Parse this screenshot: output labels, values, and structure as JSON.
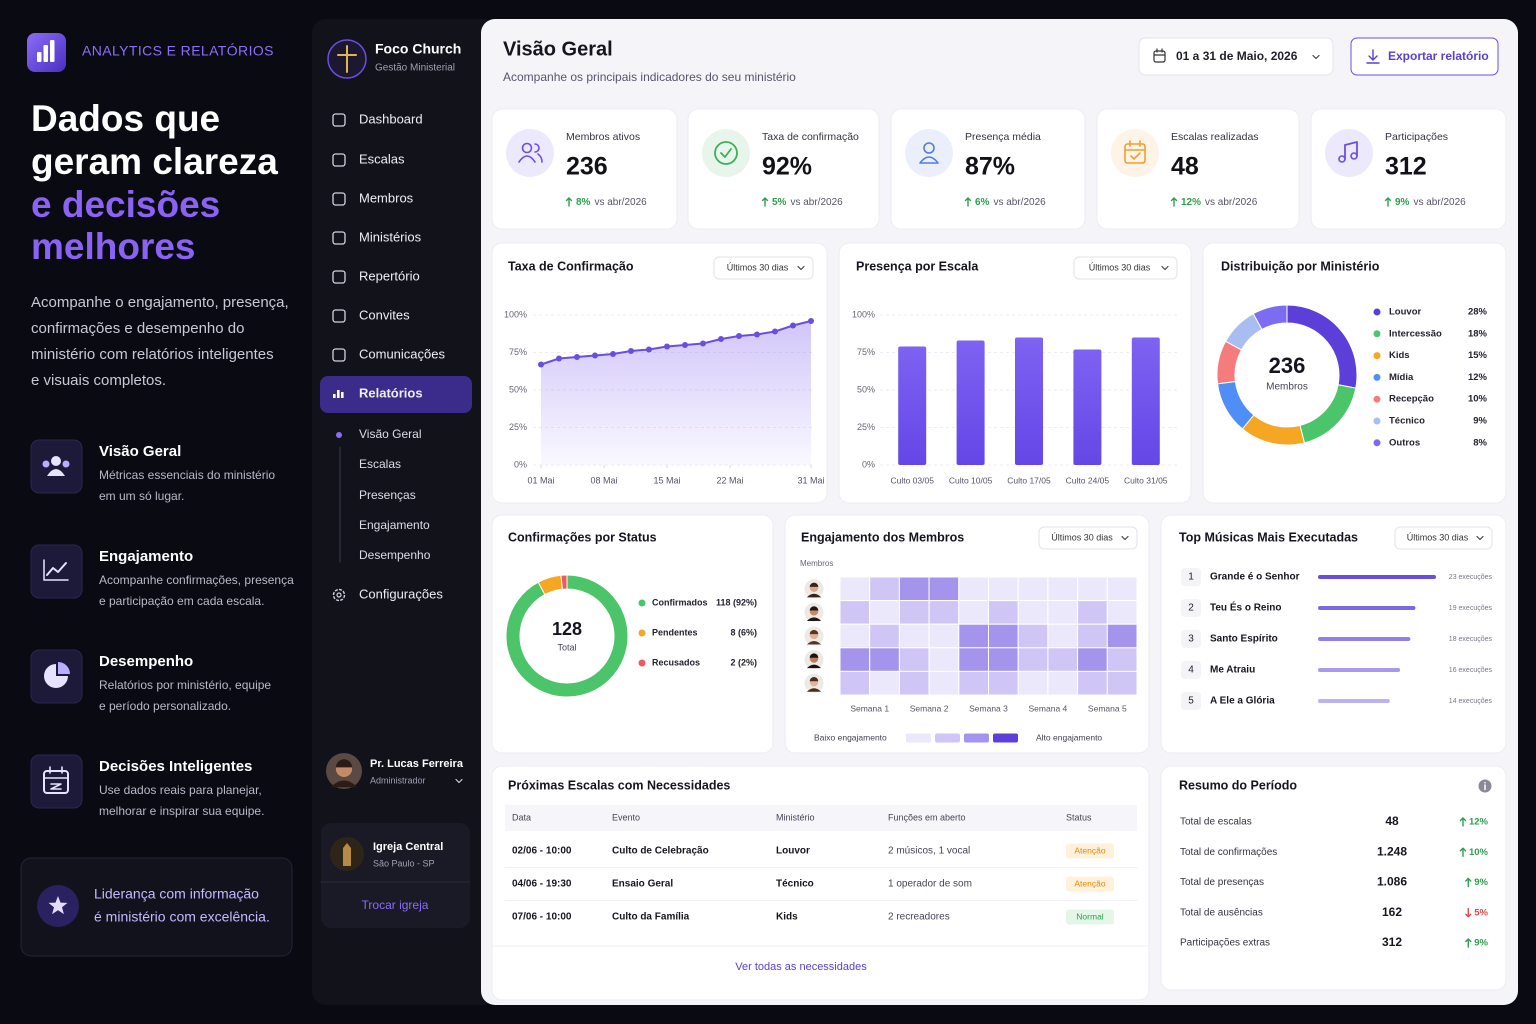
{
  "promo": {
    "eyebrow": "ANALYTICS E RELATÓRIOS",
    "headline": {
      "lines": [
        "Dados que",
        "geram clareza"
      ],
      "accent_lines": [
        "e decisões",
        "melhores"
      ]
    },
    "description_lines": [
      "Acompanhe o engajamento, presença,",
      "confirmações e desempenho do",
      "ministério com relatórios inteligentes",
      "e visuais completos."
    ],
    "features": [
      {
        "title": "Visão Geral",
        "description_lines": [
          "Métricas essenciais do ministério",
          "em um só lugar."
        ]
      },
      {
        "title": "Engajamento",
        "description_lines": [
          "Acompanhe confirmações, presença",
          "e participação em cada escala."
        ]
      },
      {
        "title": "Desempenho",
        "description_lines": [
          "Relatórios por ministério, equipe",
          "e período personalizado."
        ]
      },
      {
        "title": "Decisões Inteligentes",
        "description_lines": [
          "Use dados reais para planejar,",
          "melhorar e inspirar sua equipe."
        ]
      }
    ],
    "quote_lines": [
      "Liderança com informação",
      "é ministério com excelência."
    ]
  },
  "sidebar": {
    "brand": "Foco Church",
    "tagline": "Gestão Ministerial",
    "nav": [
      "Dashboard",
      "Escalas",
      "Membros",
      "Ministérios",
      "Repertório",
      "Convites",
      "Comunicações",
      "Relatórios"
    ],
    "active_nav": 7,
    "subnav": [
      "Visão Geral",
      "Escalas",
      "Presenças",
      "Engajamento",
      "Desempenho"
    ],
    "active_subnav": 0,
    "settings": "Configurações",
    "user": {
      "name": "Pr. Lucas Ferreira",
      "role": "Administrador"
    },
    "church": {
      "name": "Igreja Central",
      "location": "São Paulo - SP",
      "switch": "Trocar igreja"
    }
  },
  "header": {
    "title": "Visão Geral",
    "subtitle": "Acompanhe os principais indicadores do seu ministério",
    "date_range": "01 a 31 de Maio, 2026",
    "export": "Exportar relatório"
  },
  "kpis": [
    {
      "label": "Membros ativos",
      "value": "236",
      "change": "8%",
      "comparison": "vs abr/2026",
      "color": "#6b4ee6"
    },
    {
      "label": "Taxa de confirmação",
      "value": "92%",
      "change": "5%",
      "comparison": "vs abr/2026",
      "color": "#3fae5a"
    },
    {
      "label": "Presença média",
      "value": "87%",
      "change": "6%",
      "comparison": "vs abr/2026",
      "color": "#4f7fe0"
    },
    {
      "label": "Escalas realizadas",
      "value": "48",
      "change": "12%",
      "comparison": "vs abr/2026",
      "color": "#f0a030"
    },
    {
      "label": "Participações",
      "value": "312",
      "change": "9%",
      "comparison": "vs abr/2026",
      "color": "#6b4ee6"
    }
  ],
  "confirmation_chart": {
    "type": "line",
    "title": "Taxa de Confirmação",
    "filter": "Últimos 30 dias",
    "x": [
      1,
      3,
      5,
      7,
      9,
      11,
      13,
      15,
      17,
      19,
      21,
      23,
      25,
      27,
      29,
      31
    ],
    "values": [
      67,
      71,
      72,
      73,
      74,
      76,
      77,
      79,
      80,
      81,
      84,
      86,
      87,
      89,
      93,
      96
    ],
    "xlim": [
      1,
      31
    ],
    "xticks": [
      {
        "value": 1,
        "label": "01 Mai"
      },
      {
        "value": 8,
        "label": "08 Mai"
      },
      {
        "value": 15,
        "label": "15 Mai"
      },
      {
        "value": 22,
        "label": "22 Mai"
      },
      {
        "value": 31,
        "label": "31 Mai"
      }
    ],
    "ylim": [
      0,
      100
    ],
    "yticks": [
      {
        "value": 0,
        "label": "0%"
      },
      {
        "value": 25,
        "label": "25%"
      },
      {
        "value": 50,
        "label": "50%"
      },
      {
        "value": 75,
        "label": "75%"
      },
      {
        "value": 100,
        "label": "100%"
      }
    ],
    "color": "#6a4ee0",
    "grid": true
  },
  "attendance_chart": {
    "type": "bar",
    "title": "Presença por Escala",
    "filter": "Últimos 30 dias",
    "categories": [
      "Culto 03/05",
      "Culto 10/05",
      "Culto 17/05",
      "Culto 24/05",
      "Culto 31/05"
    ],
    "values": [
      79,
      83,
      85,
      77,
      85
    ],
    "ylim": [
      0,
      100
    ],
    "yticks": [
      {
        "value": 0,
        "label": "0%"
      },
      {
        "value": 25,
        "label": "25%"
      },
      {
        "value": 50,
        "label": "50%"
      },
      {
        "value": 75,
        "label": "75%"
      },
      {
        "value": 100,
        "label": "100%"
      }
    ],
    "color": "#7458ee",
    "grid": true
  },
  "ministry_chart": {
    "type": "donut",
    "title": "Distribuição por Ministério",
    "center_value": "236",
    "center_label": "Membros",
    "categories": [
      "Louvor",
      "Intercessão",
      "Kids",
      "Mídia",
      "Recepção",
      "Técnico",
      "Outros"
    ],
    "values": [
      28,
      18,
      15,
      12,
      10,
      9,
      8
    ],
    "value_labels": [
      "28%",
      "18%",
      "15%",
      "12%",
      "10%",
      "9%",
      "8%"
    ],
    "colors": [
      "#5b3fd8",
      "#4cc46a",
      "#f5a623",
      "#4f8ef7",
      "#f47c7c",
      "#a8bdf2",
      "#7c6cf2"
    ]
  },
  "status_chart": {
    "type": "donut",
    "title": "Confirmações por Status",
    "center_value": "128",
    "center_label": "Total",
    "categories": [
      "Confirmados",
      "Pendentes",
      "Recusados"
    ],
    "values": [
      118,
      8,
      2
    ],
    "value_labels": [
      "118 (92%)",
      "8 (6%)",
      "2 (2%)"
    ],
    "colors": [
      "#4cc46a",
      "#f5a623",
      "#ef5a5a"
    ]
  },
  "engagement_chart": {
    "type": "heatmap",
    "title": "Engajamento dos Membros",
    "filter": "Últimos 30 dias",
    "y_label": "Membros",
    "columns": [
      "Semana 1",
      "Semana 2",
      "Semana 3",
      "Semana 4",
      "Semana 5"
    ],
    "values": [
      [
        1,
        2,
        3,
        3,
        1,
        1,
        1,
        1,
        1,
        1
      ],
      [
        2,
        1,
        2,
        2,
        1,
        2,
        1,
        1,
        2,
        1
      ],
      [
        1,
        2,
        1,
        1,
        3,
        3,
        2,
        1,
        2,
        3
      ],
      [
        3,
        3,
        2,
        1,
        3,
        3,
        2,
        2,
        3,
        2
      ],
      [
        2,
        1,
        2,
        1,
        2,
        2,
        1,
        1,
        2,
        2
      ]
    ],
    "colors": [
      "#ebe8fb",
      "#cfc6f6",
      "#a494ec",
      "#5b3fd8"
    ],
    "legend_low": "Baixo engajamento",
    "legend_high": "Alto engajamento"
  },
  "top_songs": {
    "type": "hbar",
    "title": "Top Músicas Mais Executadas",
    "filter": "Últimos 30 dias",
    "ranks": [
      1,
      2,
      3,
      4,
      5
    ],
    "categories": [
      "Grande é o Senhor",
      "Teu És o Reino",
      "Santo Espírito",
      "Me Atraiu",
      "A Ele a Glória"
    ],
    "values": [
      23,
      19,
      18,
      16,
      14
    ],
    "value_labels": [
      "23 execuções",
      "19 execuções",
      "18 execuções",
      "16 execuções",
      "14 execuções"
    ],
    "color": "#6a4ee0"
  },
  "schedule_table": {
    "title": "Próximas Escalas com Necessidades",
    "columns": [
      "Data",
      "Evento",
      "Ministério",
      "Funções em aberto",
      "Status"
    ],
    "rows": [
      [
        "02/06 - 10:00",
        "Culto de Celebração",
        "Louvor",
        "2 músicos, 1 vocal",
        "Atenção"
      ],
      [
        "04/06 - 19:30",
        "Ensaio Geral",
        "Técnico",
        "1 operador de som",
        "Atenção"
      ],
      [
        "07/06 - 10:00",
        "Culto da Família",
        "Kids",
        "2 recreadores",
        "Normal"
      ]
    ],
    "status_tones": [
      "warning",
      "warning",
      "success"
    ],
    "link": "Ver todas as necessidades"
  },
  "summary": {
    "title": "Resumo do Período",
    "rows": [
      {
        "label": "Total de escalas",
        "value": "48",
        "change": "12%",
        "trend": "up"
      },
      {
        "label": "Total de confirmações",
        "value": "1.248",
        "change": "10%",
        "trend": "up"
      },
      {
        "label": "Total de presenças",
        "value": "1.086",
        "change": "9%",
        "trend": "up"
      },
      {
        "label": "Total de ausências",
        "value": "162",
        "change": "5%",
        "trend": "down"
      },
      {
        "label": "Participações extras",
        "value": "312",
        "change": "9%",
        "trend": "up"
      }
    ]
  }
}
